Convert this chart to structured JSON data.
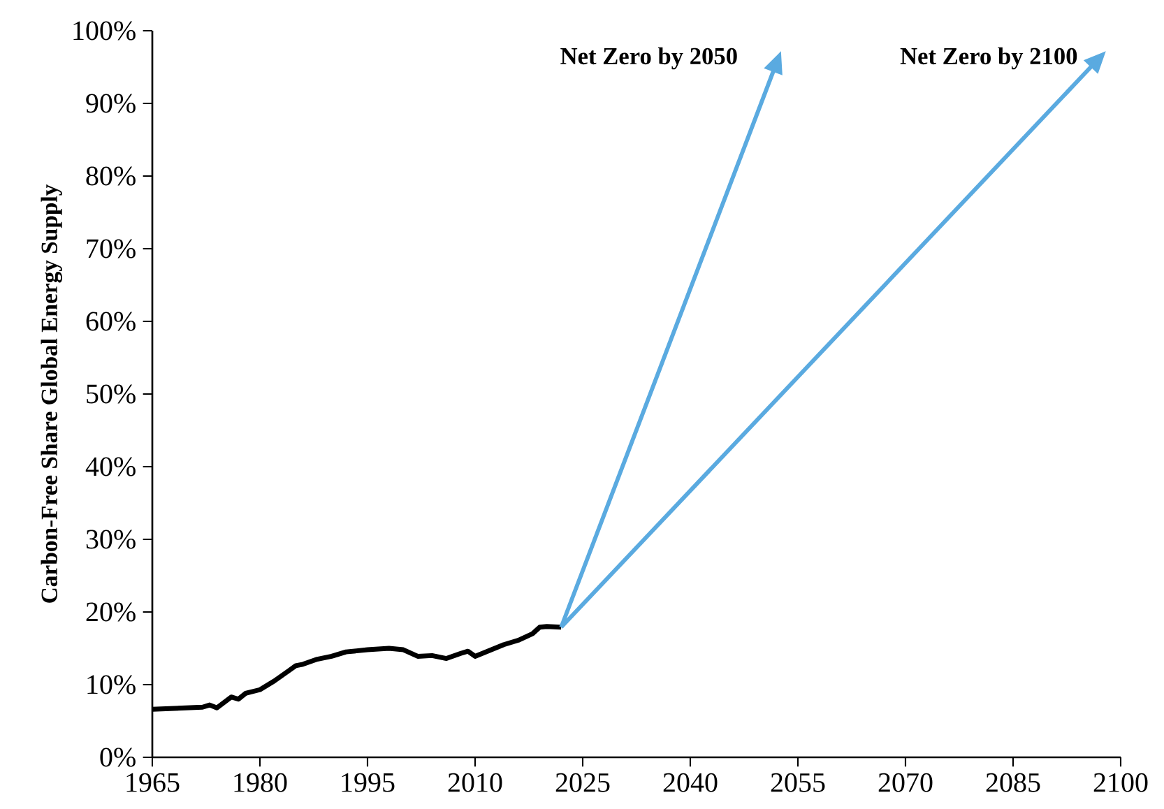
{
  "chart_data": {
    "type": "line",
    "ylabel": "Carbon-Free Share Global Energy Supply",
    "xlim": [
      1965,
      2100
    ],
    "xticks": [
      1965,
      1980,
      1995,
      2010,
      2025,
      2040,
      2055,
      2070,
      2085,
      2100
    ],
    "ylim": [
      0,
      100
    ],
    "yticks": [
      {
        "value": 0,
        "label": "0%"
      },
      {
        "value": 10,
        "label": "10%"
      },
      {
        "value": 20,
        "label": "20%"
      },
      {
        "value": 30,
        "label": "30%"
      },
      {
        "value": 40,
        "label": "40%"
      },
      {
        "value": 50,
        "label": "50%"
      },
      {
        "value": 60,
        "label": "60%"
      },
      {
        "value": 70,
        "label": "70%"
      },
      {
        "value": 80,
        "label": "80%"
      },
      {
        "value": 90,
        "label": "90%"
      },
      {
        "value": 100,
        "label": "100%"
      }
    ],
    "grid": false,
    "marker": "none",
    "line_style": "solid",
    "series": [
      {
        "color": "#000000",
        "x": [
          1965,
          1972,
          1973,
          1974,
          1976,
          1977,
          1978,
          1980,
          1982,
          1984,
          1985,
          1986,
          1988,
          1990,
          1992,
          1995,
          1998,
          2000,
          2002,
          2004,
          2006,
          2008,
          2009,
          2010,
          2012,
          2014,
          2016,
          2018,
          2019,
          2020,
          2022
        ],
        "values": [
          6.6,
          6.9,
          7.2,
          6.8,
          8.3,
          8.0,
          8.8,
          9.3,
          10.5,
          11.9,
          12.6,
          12.8,
          13.5,
          13.9,
          14.5,
          14.8,
          15.0,
          14.8,
          13.9,
          14.0,
          13.6,
          14.3,
          14.6,
          13.9,
          14.7,
          15.5,
          16.1,
          17.0,
          17.9,
          18.0,
          17.9
        ]
      }
    ],
    "annotations": [
      "Net Zero by 2050",
      "Net Zero by 2100"
    ]
  }
}
